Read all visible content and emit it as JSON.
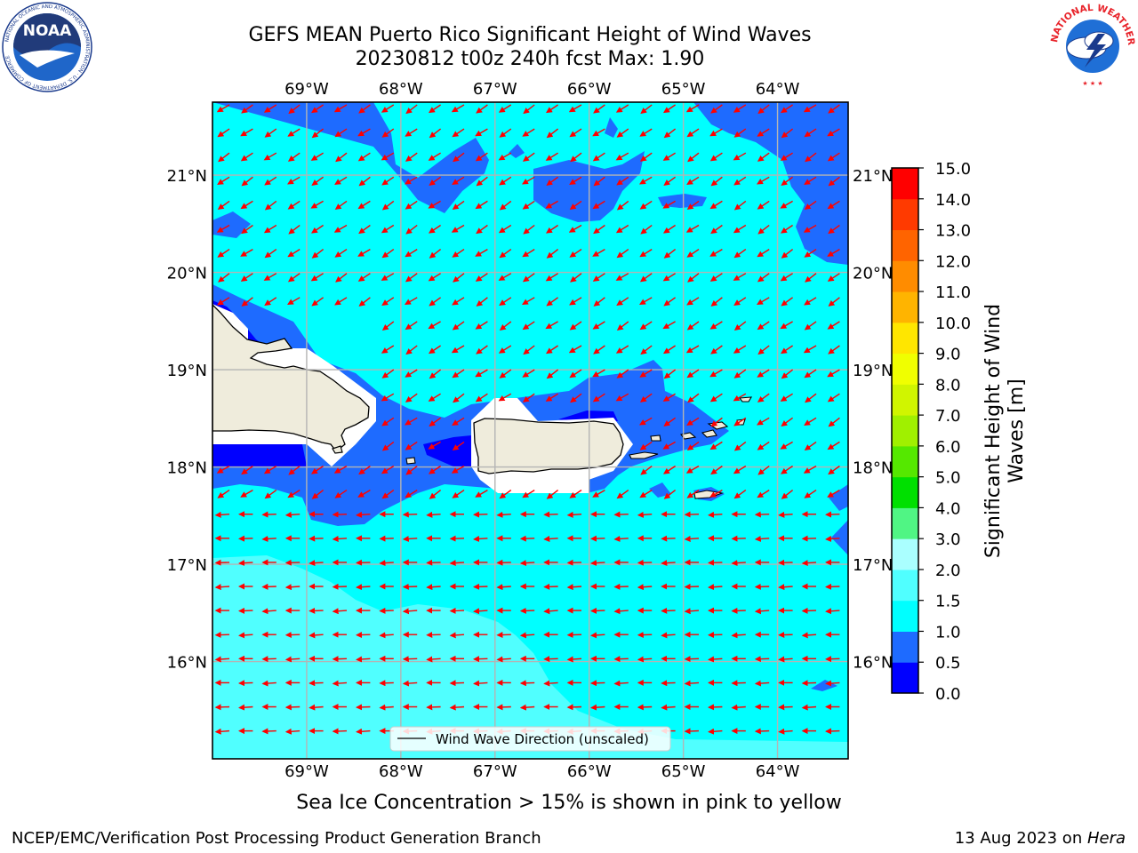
{
  "title": {
    "line1": "GEFS MEAN Puerto Rico Significant Height of Wind Waves",
    "line2": "20230812 t00z 240h fcst   Max: 1.90"
  },
  "map": {
    "lon_labels": [
      "69°W",
      "68°W",
      "67°W",
      "66°W",
      "65°W",
      "64°W"
    ],
    "lat_labels": [
      "21°N",
      "20°N",
      "19°N",
      "18°N",
      "17°N",
      "16°N"
    ],
    "lon_range": [
      -70.0,
      -63.25
    ],
    "lat_range": [
      15.0,
      21.75
    ],
    "legend_label": "Wind Wave Direction (unscaled)",
    "arrow_color": "#ff0000",
    "land_color": "#efecdc"
  },
  "colorbar": {
    "label": "Significant Height of Wind Waves [m]",
    "ticks": [
      "0.0",
      "0.5",
      "1.0",
      "1.5",
      "2.0",
      "3.0",
      "4.0",
      "5.0",
      "6.0",
      "7.0",
      "8.0",
      "9.0",
      "10.0",
      "11.0",
      "12.0",
      "13.0",
      "14.0",
      "15.0"
    ],
    "colors": [
      "#0000ff",
      "#1e6bff",
      "#00ffff",
      "#50ffff",
      "#aaffff",
      "#50f584",
      "#00e000",
      "#55e800",
      "#a0f000",
      "#d0f500",
      "#f0ff00",
      "#ffe600",
      "#ffb400",
      "#ff8c00",
      "#ff6400",
      "#ff3a00",
      "#ff0000"
    ]
  },
  "footer": {
    "subtitle": "Sea Ice Concentration > 15% is shown in pink to yellow",
    "credit": "NCEP/EMC/Verification Post Processing Product Generation Branch",
    "date": "13 Aug 2023 on ",
    "machine": "Hera"
  },
  "logos": {
    "left": "noaa-logo",
    "left_text": "NOAA",
    "left_ring": "NATIONAL OCEANIC AND ATMOSPHERIC ADMINISTRATION · U.S. DEPARTMENT OF COMMERCE",
    "right": "nws-logo",
    "right_ring": "NATIONAL WEATHER SERVICE"
  }
}
